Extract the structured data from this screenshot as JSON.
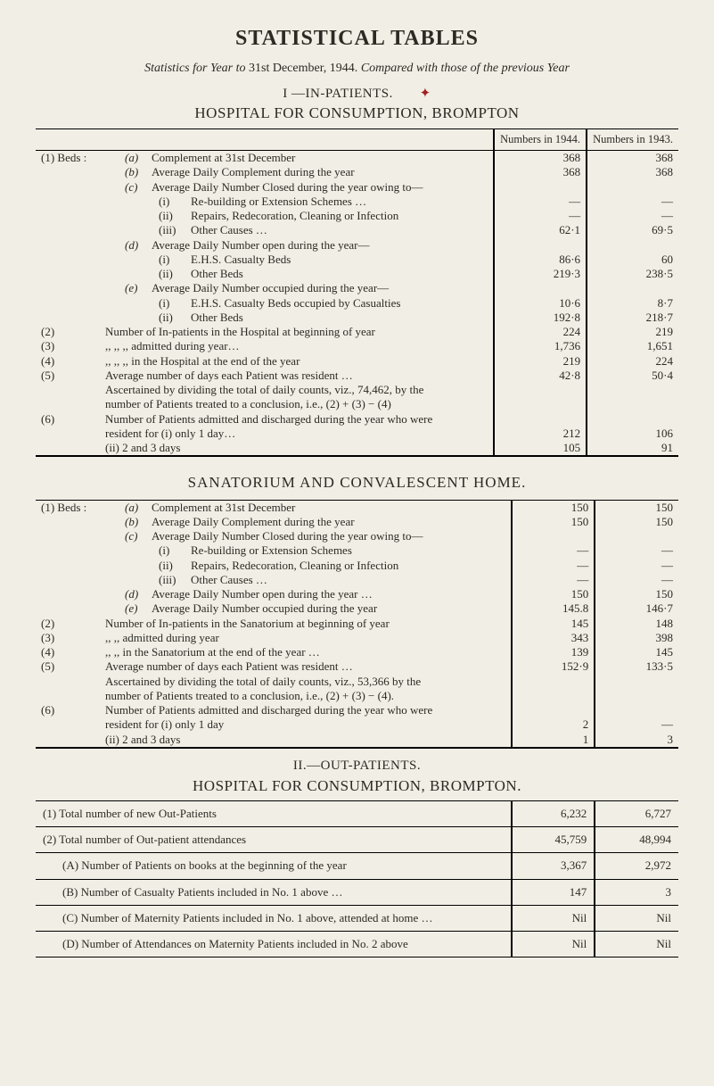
{
  "title": "STATISTICAL TABLES",
  "subtitle_pre": "Statistics for Year to ",
  "subtitle_date": "31st December, 1944.",
  "subtitle_post": "  Compared with those of the previous Year",
  "sectionI_num": "I —IN-PATIENTS.",
  "sectionI_title": "HOSPITAL FOR CONSUMPTION, BROMPTON",
  "col_1944": "Numbers in 1944.",
  "col_1943": "Numbers in 1943.",
  "t1": {
    "rows": [
      {
        "tag": "(1) Beds :",
        "sub": "(a)",
        "txt": "Complement at 31st December",
        "v1": "368",
        "v2": "368"
      },
      {
        "tag": "",
        "sub": "(b)",
        "txt": "Average Daily Complement during the year",
        "v1": "368",
        "v2": "368"
      },
      {
        "tag": "",
        "sub": "(c)",
        "txt": "Average Daily Number Closed during the year owing to—",
        "v1": "",
        "v2": ""
      },
      {
        "tag": "",
        "sub": "",
        "i3": "(i)",
        "txt": "Re-building or Extension Schemes …",
        "v1": "—",
        "v2": "—"
      },
      {
        "tag": "",
        "sub": "",
        "i3": "(ii)",
        "txt": "Repairs, Redecoration, Cleaning or Infection",
        "v1": "—",
        "v2": "—"
      },
      {
        "tag": "",
        "sub": "",
        "i3": "(iii)",
        "txt": "Other Causes …",
        "v1": "62·1",
        "v2": "69·5"
      },
      {
        "tag": "",
        "sub": "(d)",
        "txt": "Average Daily Number open during the year—",
        "v1": "",
        "v2": ""
      },
      {
        "tag": "",
        "sub": "",
        "i3": "(i)",
        "txt": "E.H.S. Casualty Beds",
        "v1": "86·6",
        "v2": "60"
      },
      {
        "tag": "",
        "sub": "",
        "i3": "(ii)",
        "txt": "Other Beds",
        "v1": "219·3",
        "v2": "238·5"
      },
      {
        "tag": "",
        "sub": "(e)",
        "txt": "Average Daily Number occupied during the year—",
        "v1": "",
        "v2": ""
      },
      {
        "tag": "",
        "sub": "",
        "i3": "(i)",
        "txt": "E.H.S. Casualty Beds occupied by Casualties",
        "v1": "10·6",
        "v2": "8·7"
      },
      {
        "tag": "",
        "sub": "",
        "i3": "(ii)",
        "txt": "Other Beds",
        "v1": "192·8",
        "v2": "218·7"
      },
      {
        "tag": "(2)",
        "txt2": "Number of In-patients in the Hospital at beginning of year",
        "v1": "224",
        "v2": "219"
      },
      {
        "tag": "(3)",
        "txt2": "       ,,           ,,          ,,        admitted during year…",
        "v1": "1,736",
        "v2": "1,651"
      },
      {
        "tag": "(4)",
        "txt2": "       ,,           ,,          ,,        in the Hospital at the end of the year",
        "v1": "219",
        "v2": "224"
      },
      {
        "tag": "(5)",
        "txt2": "Average number of days each Patient was resident …",
        "v1": "42·8",
        "v2": "50·4"
      },
      {
        "tag": "",
        "txt2": "      Ascertained by dividing the total of daily counts, viz., 74,462, by the",
        "v1": "",
        "v2": ""
      },
      {
        "tag": "",
        "txt2": "         number of Patients treated to a conclusion, i.e., (2) + (3) − (4)",
        "v1": "",
        "v2": ""
      },
      {
        "tag": "(6)",
        "txt2": "Number of Patients admitted and discharged during the year who were",
        "v1": "",
        "v2": ""
      },
      {
        "tag": "",
        "txt2": "   resident for  (i) only 1 day…",
        "v1": "212",
        "v2": "106"
      },
      {
        "tag": "",
        "txt2": "                         (ii) 2 and 3 days",
        "v1": "105",
        "v2": "91"
      }
    ]
  },
  "sanatorium_title": "SANATORIUM AND CONVALESCENT HOME.",
  "t2": {
    "rows": [
      {
        "tag": "(1) Beds :",
        "sub": "(a)",
        "txt": "Complement at 31st December",
        "v1": "150",
        "v2": "150"
      },
      {
        "tag": "",
        "sub": "(b)",
        "txt": "Average Daily Complement during the year",
        "v1": "150",
        "v2": "150"
      },
      {
        "tag": "",
        "sub": "(c)",
        "txt": "Average Daily Number Closed during the year owing to—",
        "v1": "",
        "v2": ""
      },
      {
        "tag": "",
        "sub": "",
        "i3": "(i)",
        "txt": "Re-building or Extension Schemes",
        "v1": "—",
        "v2": "—"
      },
      {
        "tag": "",
        "sub": "",
        "i3": "(ii)",
        "txt": "Repairs, Redecoration, Cleaning or Infection",
        "v1": "—",
        "v2": "—"
      },
      {
        "tag": "",
        "sub": "",
        "i3": "(iii)",
        "txt": "Other Causes …",
        "v1": "—",
        "v2": "—"
      },
      {
        "tag": "",
        "sub": "(d)",
        "txt": "Average Daily Number open during the year …",
        "v1": "150",
        "v2": "150"
      },
      {
        "tag": "",
        "sub": "(e)",
        "txt": "Average Daily Number occupied during the year",
        "v1": "145.8",
        "v2": "146·7"
      },
      {
        "tag": "(2)",
        "txt2": "Number of In-patients in the Sanatorium at beginning of year",
        "v1": "145",
        "v2": "148"
      },
      {
        "tag": "(3)",
        "txt2": "       ,,           ,,             admitted during year",
        "v1": "343",
        "v2": "398"
      },
      {
        "tag": "(4)",
        "txt2": "       ,,           ,,             in the Sanatorium at the end of the year …",
        "v1": "139",
        "v2": "145"
      },
      {
        "tag": "(5)",
        "txt2": "Average number of days each Patient was resident …",
        "v1": "152·9",
        "v2": "133·5"
      },
      {
        "tag": "",
        "txt2": "      Ascertained by dividing the total of daily counts, viz., 53,366 by the",
        "v1": "",
        "v2": ""
      },
      {
        "tag": "",
        "txt2": "         number of Patients treated to a conclusion, i.e., (2) + (3) − (4).",
        "v1": "",
        "v2": ""
      },
      {
        "tag": "(6)",
        "txt2": "Number of Patients admitted and discharged during the year who were",
        "v1": "",
        "v2": ""
      },
      {
        "tag": "",
        "txt2": "   resident for (i) only 1 day",
        "v1": "2",
        "v2": "—"
      },
      {
        "tag": "",
        "txt2": "                        (ii) 2 and 3 days",
        "v1": "1",
        "v2": "3"
      }
    ]
  },
  "sectionII_num": "II.—OUT-PATIENTS.",
  "sectionII_title": "HOSPITAL FOR CONSUMPTION, BROMPTON.",
  "t3": {
    "rows": [
      {
        "txt": "(1) Total number of new Out-Patients",
        "v1": "6,232",
        "v2": "6,727",
        "rule": 1
      },
      {
        "txt": "(2) Total number of Out-patient attendances",
        "v1": "45,759",
        "v2": "48,994",
        "rule": 1,
        "botheavy": 1
      },
      {
        "ind": 1,
        "txt": "(A) Number of Patients on books at the beginning of the year",
        "v1": "3,367",
        "v2": "2,972",
        "rule": 1
      },
      {
        "ind": 1,
        "txt": "(B) Number of Casualty Patients included in No. 1 above …",
        "v1": "147",
        "v2": "3",
        "rule": 1
      },
      {
        "ind": 1,
        "txt": "(C) Number of Maternity Patients included in No. 1 above, attended at home …",
        "v1": "Nil",
        "v2": "Nil",
        "rule": 1
      },
      {
        "ind": 1,
        "txt": "(D) Number of Attendances on Maternity Patients included in No. 2 above",
        "v1": "Nil",
        "v2": "Nil",
        "rule": 1
      }
    ]
  },
  "colors": {
    "bg": "#f1eee5",
    "text": "#2b2b24",
    "accent": "#a02020"
  }
}
